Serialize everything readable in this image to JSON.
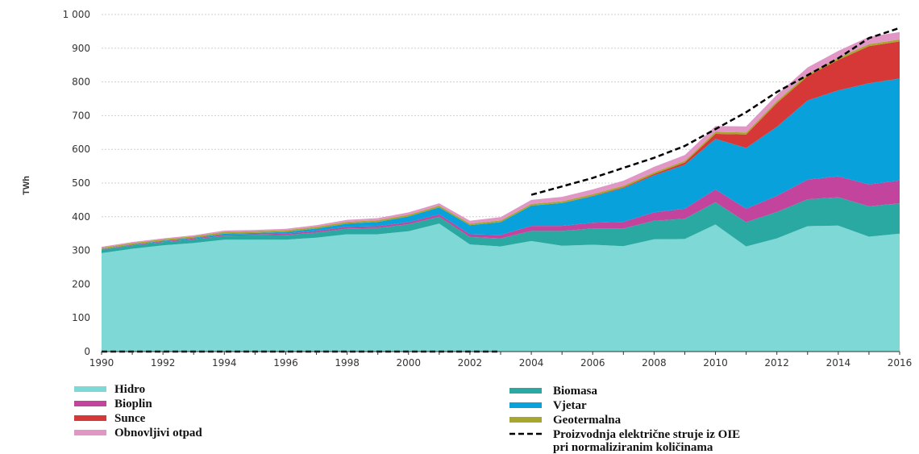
{
  "chart_data": {
    "type": "area",
    "stacked": true,
    "title": "",
    "xlabel": "",
    "ylabel": "TWh",
    "ylim": [
      0,
      1000
    ],
    "yticks": [
      0,
      100,
      200,
      300,
      400,
      500,
      600,
      700,
      800,
      900,
      1000
    ],
    "ytick_labels": [
      "0",
      "100",
      "200",
      "300",
      "400",
      "500",
      "600",
      "700",
      "800",
      "900",
      "1 000"
    ],
    "xlim": [
      1990,
      2016
    ],
    "xticks": [
      1990,
      1992,
      1994,
      1996,
      1998,
      2000,
      2002,
      2004,
      2006,
      2008,
      2010,
      2012,
      2014,
      2016
    ],
    "x": [
      1990,
      1991,
      1992,
      1993,
      1994,
      1995,
      1996,
      1997,
      1998,
      1999,
      2000,
      2001,
      2002,
      2003,
      2004,
      2005,
      2006,
      2007,
      2008,
      2009,
      2010,
      2011,
      2012,
      2013,
      2014,
      2015,
      2016
    ],
    "grid": "horizontal",
    "series": [
      {
        "name": "Hidro",
        "color": "#7dd8d6",
        "values": [
          292,
          305,
          315,
          322,
          332,
          332,
          332,
          338,
          348,
          348,
          357,
          380,
          318,
          312,
          328,
          314,
          317,
          313,
          333,
          334,
          377,
          312,
          336,
          372,
          374,
          341,
          350
        ]
      },
      {
        "name": "Biomasa",
        "color": "#2aa9a2",
        "values": [
          10,
          10,
          10,
          11,
          12,
          13,
          14,
          15,
          17,
          19,
          21,
          20,
          22,
          24,
          30,
          44,
          48,
          52,
          55,
          60,
          66,
          72,
          78,
          80,
          84,
          90,
          90
        ]
      },
      {
        "name": "Bioplin",
        "color": "#c2449c",
        "values": [
          1,
          2,
          2,
          3,
          3,
          3,
          4,
          5,
          5,
          5,
          6,
          7,
          8,
          10,
          15,
          15,
          17,
          20,
          25,
          30,
          38,
          40,
          48,
          58,
          62,
          65,
          68
        ]
      },
      {
        "name": "Vjetar",
        "color": "#08a1dc",
        "values": [
          1,
          1,
          2,
          2,
          3,
          4,
          5,
          7,
          10,
          13,
          17,
          21,
          27,
          38,
          60,
          68,
          79,
          100,
          110,
          130,
          150,
          180,
          205,
          235,
          255,
          300,
          302
        ]
      },
      {
        "name": "Sunce",
        "color": "#d63838",
        "values": [
          0,
          0,
          0,
          0,
          0,
          0,
          0,
          0,
          0,
          0,
          0,
          0,
          0,
          0,
          0,
          0,
          1,
          2,
          4,
          7,
          15,
          40,
          70,
          72,
          90,
          110,
          110
        ]
      },
      {
        "name": "Geotermalna",
        "color": "#a8a62e",
        "values": [
          4,
          4,
          4,
          4,
          5,
          5,
          5,
          5,
          5,
          5,
          5,
          5,
          5,
          5,
          5,
          5,
          5,
          5,
          5,
          5,
          6,
          6,
          6,
          6,
          6,
          6,
          6
        ]
      },
      {
        "name": "Obnovljivi otpad",
        "color": "#e196c6",
        "values": [
          3,
          3,
          3,
          3,
          4,
          4,
          4,
          5,
          6,
          6,
          7,
          7,
          8,
          10,
          12,
          13,
          14,
          15,
          16,
          17,
          17,
          18,
          19,
          20,
          21,
          22,
          22
        ]
      }
    ],
    "normalized_line": {
      "name": "Proizvodnja električne struje iz OIE pri normaliziranim količinama",
      "x": [
        2004,
        2005,
        2006,
        2007,
        2008,
        2009,
        2010,
        2011,
        2012,
        2013,
        2014,
        2015,
        2016
      ],
      "values": [
        465,
        490,
        515,
        545,
        575,
        610,
        660,
        710,
        770,
        820,
        870,
        930,
        960
      ],
      "color": "#000000",
      "style": "dashed"
    },
    "legend": {
      "placement": "bottom",
      "left": [
        {
          "label": "Hidro",
          "color": "#7dd8d6",
          "kind": "swatch"
        },
        {
          "label": "Bioplin",
          "color": "#c2449c",
          "kind": "swatch"
        },
        {
          "label": "Sunce",
          "color": "#d63838",
          "kind": "swatch"
        },
        {
          "label": "Obnovljivi otpad",
          "color": "#e196c6",
          "kind": "swatch"
        }
      ],
      "right": [
        {
          "label": "Biomasa",
          "color": "#2aa9a2",
          "kind": "swatch"
        },
        {
          "label": "Vjetar",
          "color": "#08a1dc",
          "kind": "swatch"
        },
        {
          "label": "Geotermalna",
          "color": "#a8a62e",
          "kind": "swatch"
        },
        {
          "label": [
            "Proizvodnja električne struje iz OIE",
            "pri normaliziranim količinama"
          ],
          "color": "#000000",
          "kind": "dashed"
        }
      ]
    }
  }
}
